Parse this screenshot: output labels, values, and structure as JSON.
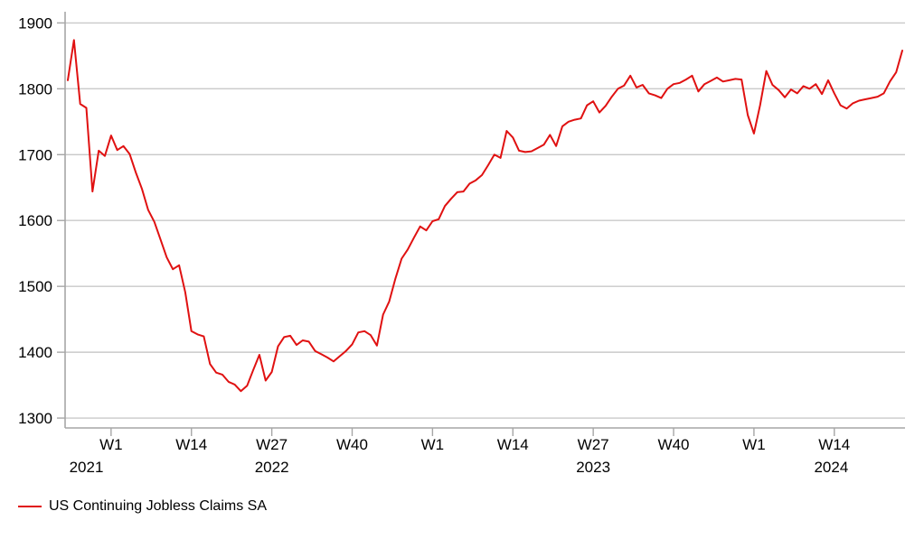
{
  "colors": {
    "line": "#e01111",
    "grid": "#c9c9c9",
    "axis": "#a6a6a6",
    "text": "#000000",
    "background": "#ffffff"
  },
  "legend": {
    "label": "US Continuing Jobless Claims SA"
  },
  "chart_data": {
    "type": "line",
    "title": "",
    "xlabel": "",
    "ylabel": "",
    "grid": true,
    "legend_position": "bottom-left",
    "y_ticks": [
      1300,
      1400,
      1500,
      1600,
      1700,
      1800,
      1900
    ],
    "ylim": [
      1285,
      1917
    ],
    "x_unit": "week",
    "x_start_week": "2021-W46",
    "x_end_week": "2024-W25",
    "x_tick_indices": [
      7,
      20,
      33,
      46,
      59,
      72,
      85,
      98,
      111,
      124
    ],
    "x_tick_labels": [
      "W1",
      "W14",
      "W27",
      "W40",
      "W1",
      "W14",
      "W27",
      "W40",
      "W1",
      "W14"
    ],
    "year_labels": [
      {
        "text": "2021",
        "index": 3.0
      },
      {
        "text": "2022",
        "index": 33.0
      },
      {
        "text": "2023",
        "index": 85.0
      },
      {
        "text": "2024",
        "index": 123.5
      }
    ],
    "series": [
      {
        "name": "US Continuing Jobless Claims SA",
        "color": "#e01111",
        "values": [
          1813,
          1874,
          1777,
          1771,
          1644,
          1706,
          1698,
          1729,
          1707,
          1713,
          1701,
          1673,
          1648,
          1616,
          1598,
          1571,
          1544,
          1526,
          1532,
          1491,
          1432,
          1427,
          1424,
          1382,
          1369,
          1366,
          1355,
          1351,
          1341,
          1349,
          1373,
          1396,
          1357,
          1370,
          1409,
          1423,
          1425,
          1411,
          1418,
          1416,
          1402,
          1397,
          1392,
          1386,
          1394,
          1402,
          1412,
          1430,
          1432,
          1426,
          1410,
          1457,
          1477,
          1512,
          1542,
          1556,
          1574,
          1591,
          1585,
          1599,
          1602,
          1622,
          1633,
          1643,
          1644,
          1656,
          1661,
          1669,
          1684,
          1700,
          1695,
          1736,
          1726,
          1706,
          1704,
          1705,
          1710,
          1715,
          1730,
          1713,
          1743,
          1750,
          1753,
          1755,
          1775,
          1781,
          1764,
          1774,
          1788,
          1800,
          1805,
          1820,
          1802,
          1806,
          1793,
          1790,
          1786,
          1800,
          1807,
          1809,
          1814,
          1820,
          1796,
          1807,
          1812,
          1817,
          1811,
          1813,
          1815,
          1814,
          1760,
          1732,
          1775,
          1827,
          1806,
          1798,
          1787,
          1799,
          1793,
          1804,
          1800,
          1807,
          1792,
          1813,
          1793,
          1775,
          1770,
          1778,
          1782,
          1784,
          1786,
          1788,
          1793,
          1811,
          1825,
          1858
        ]
      }
    ]
  }
}
